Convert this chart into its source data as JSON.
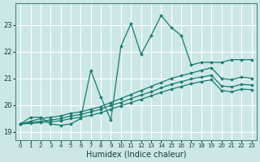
{
  "xlabel": "Humidex (Indice chaleur)",
  "bg_color": "#cce8e6",
  "grid_color": "#ffffff",
  "line_color": "#1a7a6e",
  "xlim": [
    -0.5,
    23.5
  ],
  "ylim": [
    18.7,
    23.8
  ],
  "xticks": [
    0,
    1,
    2,
    3,
    4,
    5,
    6,
    7,
    8,
    9,
    10,
    11,
    12,
    13,
    14,
    15,
    16,
    17,
    18,
    19,
    20,
    21,
    22,
    23
  ],
  "yticks": [
    19,
    20,
    21,
    22,
    23
  ],
  "series": [
    {
      "x": [
        0,
        1,
        2,
        3,
        4,
        5,
        6,
        7,
        8,
        9,
        10,
        11,
        12,
        13,
        14,
        15,
        16,
        17,
        18,
        19,
        20,
        21,
        22,
        23
      ],
      "y": [
        19.3,
        19.55,
        19.55,
        19.3,
        19.25,
        19.3,
        19.5,
        21.3,
        20.3,
        19.45,
        22.2,
        23.05,
        21.9,
        22.6,
        23.35,
        22.9,
        22.6,
        21.5,
        21.6,
        21.6,
        21.6,
        21.7,
        21.7,
        21.7
      ]
    },
    {
      "x": [
        0,
        1,
        2,
        3,
        4,
        5,
        6,
        7,
        8,
        9,
        10,
        11,
        12,
        13,
        14,
        15,
        16,
        17,
        18,
        19,
        20,
        21,
        22,
        23
      ],
      "y": [
        19.3,
        19.4,
        19.5,
        19.55,
        19.6,
        19.7,
        19.75,
        19.85,
        19.95,
        20.1,
        20.25,
        20.4,
        20.55,
        20.7,
        20.85,
        21.0,
        21.1,
        21.2,
        21.3,
        21.4,
        21.0,
        20.95,
        21.05,
        21.0
      ]
    },
    {
      "x": [
        0,
        1,
        2,
        3,
        4,
        5,
        6,
        7,
        8,
        9,
        10,
        11,
        12,
        13,
        14,
        15,
        16,
        17,
        18,
        19,
        20,
        21,
        22,
        23
      ],
      "y": [
        19.3,
        19.35,
        19.4,
        19.45,
        19.5,
        19.6,
        19.65,
        19.75,
        19.85,
        20.0,
        20.1,
        20.25,
        20.38,
        20.5,
        20.65,
        20.78,
        20.88,
        20.98,
        21.05,
        21.12,
        20.72,
        20.68,
        20.78,
        20.75
      ]
    },
    {
      "x": [
        0,
        1,
        2,
        3,
        4,
        5,
        6,
        7,
        8,
        9,
        10,
        11,
        12,
        13,
        14,
        15,
        16,
        17,
        18,
        19,
        20,
        21,
        22,
        23
      ],
      "y": [
        19.3,
        19.32,
        19.35,
        19.38,
        19.42,
        19.5,
        19.55,
        19.62,
        19.72,
        19.85,
        19.98,
        20.1,
        20.22,
        20.35,
        20.48,
        20.6,
        20.7,
        20.8,
        20.88,
        20.95,
        20.55,
        20.5,
        20.6,
        20.58
      ]
    }
  ]
}
